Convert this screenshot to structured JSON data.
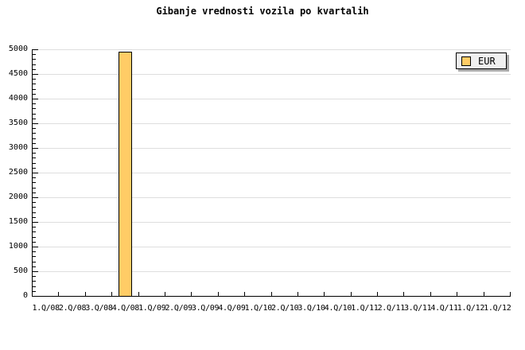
{
  "title": "Gibanje vrednosti vozila po kvartalih",
  "legend": {
    "label": "EUR",
    "swatch_color": "#FFCC66",
    "position": "top-right"
  },
  "chart_data": {
    "type": "bar",
    "title": "Gibanje vrednosti vozila po kvartalih",
    "categories": [
      "1.Q/08",
      "2.Q/08",
      "3.Q/08",
      "4.Q/08",
      "1.Q/09",
      "2.Q/09",
      "3.Q/09",
      "4.Q/09",
      "1.Q/10",
      "2.Q/10",
      "3.Q/10",
      "4.Q/10",
      "1.Q/11",
      "2.Q/11",
      "3.Q/11",
      "4.Q/11",
      "1.Q/12",
      "1.Q/12"
    ],
    "series": [
      {
        "name": "EUR",
        "values": [
          0,
          0,
          0,
          4950,
          0,
          0,
          0,
          0,
          0,
          0,
          0,
          0,
          0,
          0,
          0,
          0,
          0,
          0
        ]
      }
    ],
    "xlabel": "",
    "ylabel": "",
    "ylim": [
      0,
      5000
    ],
    "y_major_step": 500,
    "y_minor_step": 100,
    "grid": "horizontal-major",
    "legend_position": "top-right",
    "colors": {
      "bar_fill": "#FFCC66",
      "bar_border": "#000000",
      "grid": "#DEDEDE",
      "axis": "#000000",
      "background": "#FFFFFF",
      "legend_bg": "#F0F0F0",
      "legend_shadow": "#A9A9A9"
    }
  }
}
